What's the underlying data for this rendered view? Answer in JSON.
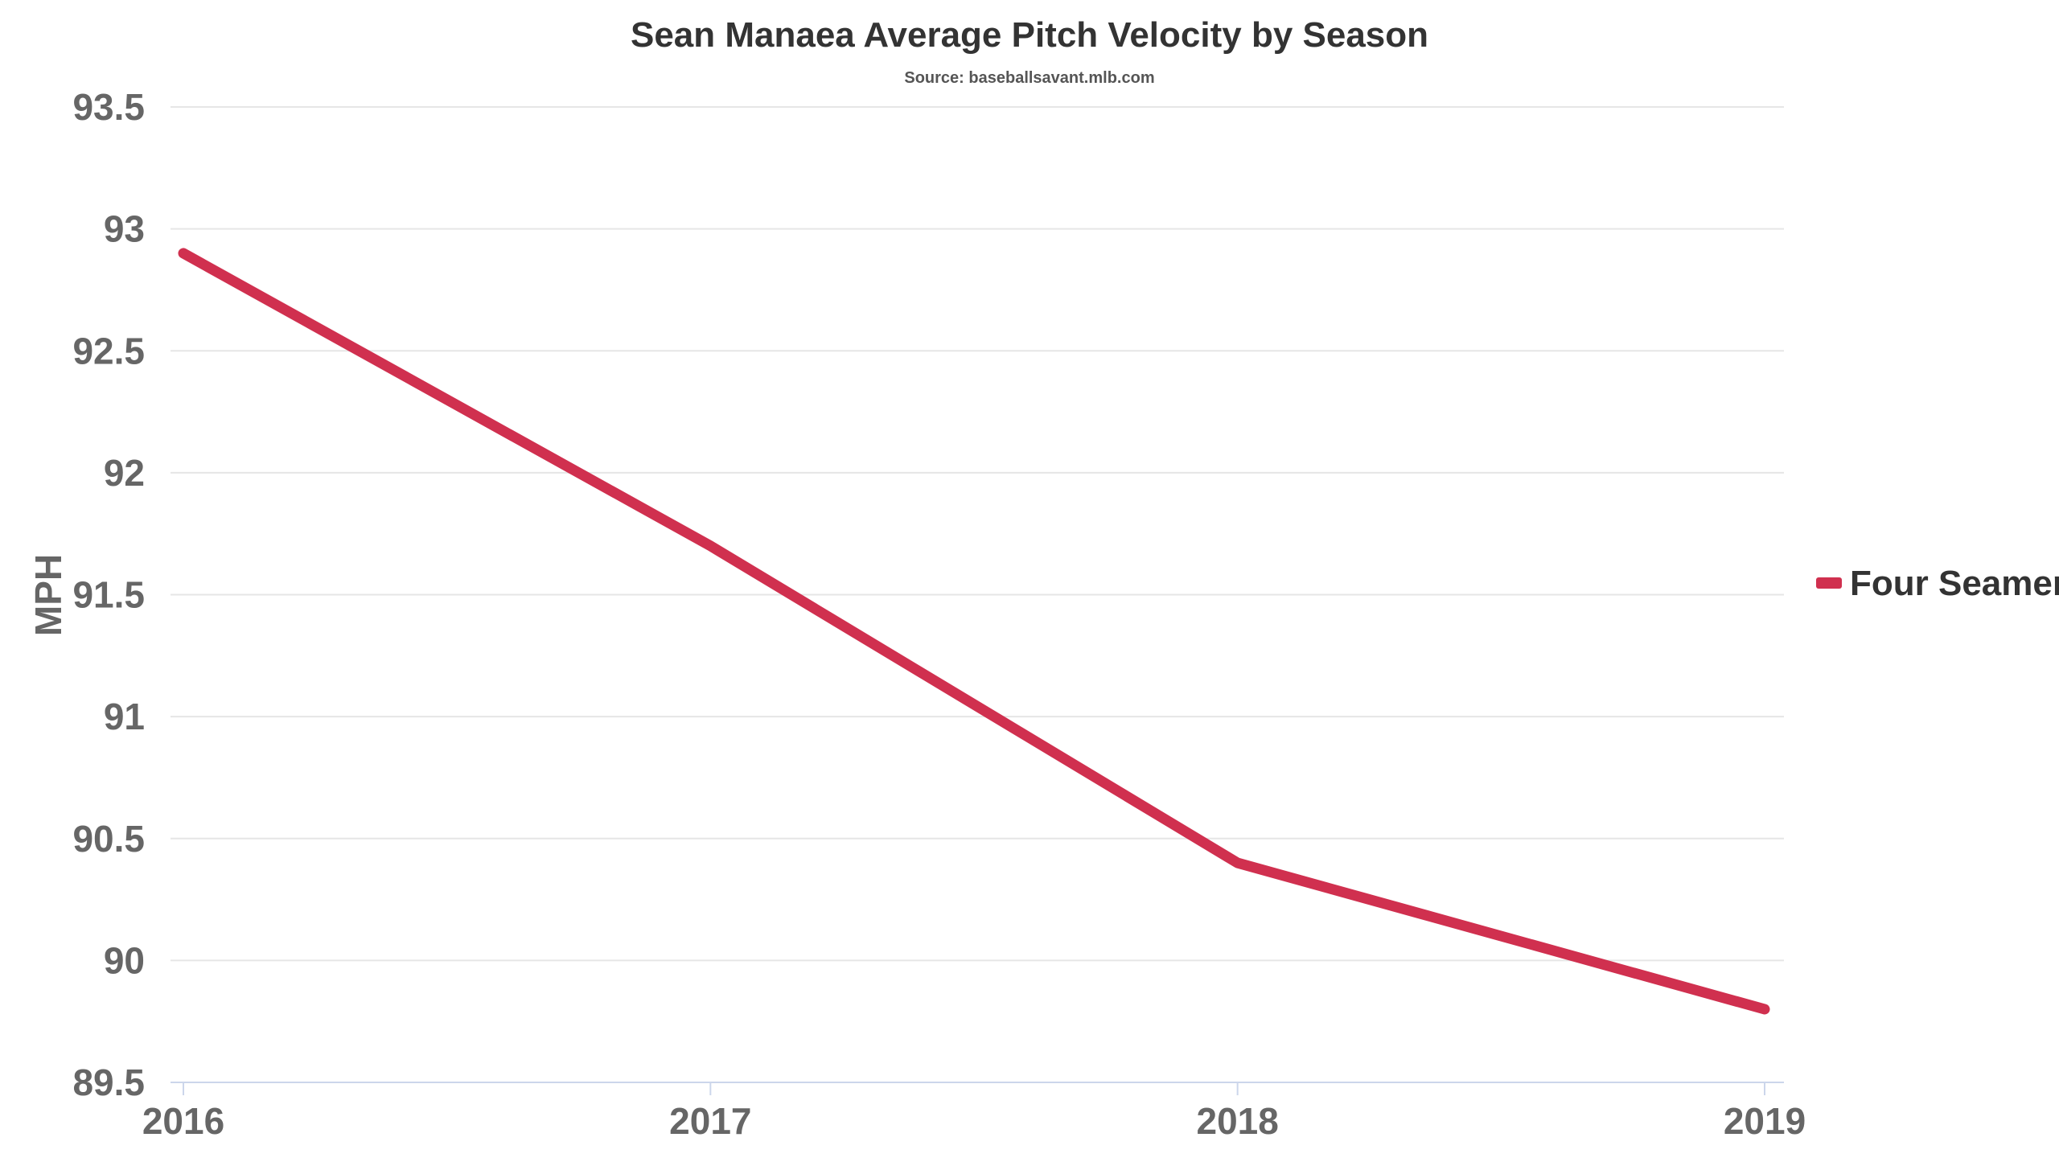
{
  "chart_data": {
    "type": "line",
    "title": "Sean Manaea Average Pitch Velocity by Season",
    "subtitle": "Source: baseballsavant.mlb.com",
    "xlabel": "",
    "ylabel": "MPH",
    "categories": [
      "2016",
      "2017",
      "2018",
      "2019"
    ],
    "series": [
      {
        "name": "Four Seamer",
        "color": "#d0304f",
        "values": [
          92.9,
          91.7,
          90.4,
          89.8
        ]
      }
    ],
    "ylim": [
      89.5,
      93.5
    ],
    "yticks": [
      93.5,
      93,
      92.5,
      92,
      91.5,
      91,
      90.5,
      90,
      89.5
    ],
    "ytick_labels": [
      "93.5",
      "93",
      "92.5",
      "92",
      "91.5",
      "91",
      "90.5",
      "90",
      "89.5"
    ],
    "grid": true,
    "legend_position": "right"
  }
}
